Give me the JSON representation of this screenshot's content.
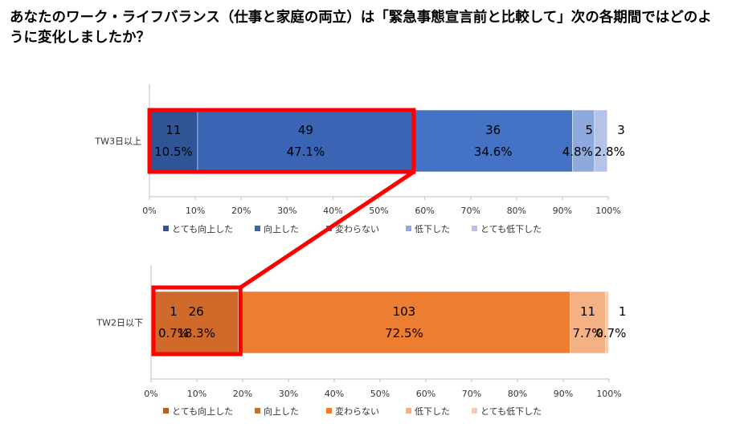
{
  "title": "あなたのワーク・ライフバランス（仕事と家庭の両立）は「緊急事態宣言前と比較して」次の各期間ではどのように変化しましたか？",
  "chart_data": [
    {
      "type": "bar",
      "orientation": "horizontal",
      "stacked": "100%",
      "categories": [
        "TW3日以上"
      ],
      "xlim": [
        0,
        100
      ],
      "x_ticks": [
        "0%",
        "10%",
        "20%",
        "30%",
        "40%",
        "50%",
        "60%",
        "70%",
        "80%",
        "90%",
        "100%"
      ],
      "legend_position": "bottom",
      "series": [
        {
          "name": "とても向上した",
          "count": 11,
          "percent": 10.5,
          "percent_label": "10.5%",
          "color": "#2F5597"
        },
        {
          "name": "向上した",
          "count": 49,
          "percent": 47.1,
          "percent_label": "47.1%",
          "color": "#3A64B4"
        },
        {
          "name": "変わらない",
          "count": 36,
          "percent": 34.6,
          "percent_label": "34.6%",
          "color": "#4472C4"
        },
        {
          "name": "低下した",
          "count": 5,
          "percent": 4.8,
          "percent_label": "4.8%",
          "color": "#8EA9DB"
        },
        {
          "name": "とても低下した",
          "count": 3,
          "percent": 2.8,
          "percent_label": "2.8%",
          "color": "#B4C3E6"
        }
      ]
    },
    {
      "type": "bar",
      "orientation": "horizontal",
      "stacked": "100%",
      "categories": [
        "TW2日以下"
      ],
      "xlim": [
        0,
        100
      ],
      "x_ticks": [
        "0%",
        "10%",
        "20%",
        "30%",
        "40%",
        "50%",
        "60%",
        "70%",
        "80%",
        "90%",
        "100%"
      ],
      "legend_position": "bottom",
      "series": [
        {
          "name": "とても向上した",
          "count": 1,
          "percent": 0.7,
          "percent_label": "0.7%",
          "color": "#C55A11"
        },
        {
          "name": "向上した",
          "count": 26,
          "percent": 18.3,
          "percent_label": "18.3%",
          "color": "#D06A2A"
        },
        {
          "name": "変わらない",
          "count": 103,
          "percent": 72.5,
          "percent_label": "72.5%",
          "color": "#ED7D31"
        },
        {
          "name": "低下した",
          "count": 11,
          "percent": 7.7,
          "percent_label": "7.7%",
          "color": "#F4B183"
        },
        {
          "name": "とても低下した",
          "count": 1,
          "percent": 0.7,
          "percent_label": "0.7%",
          "color": "#F8CBAD"
        }
      ]
    }
  ],
  "highlight_color": "#FF0000"
}
